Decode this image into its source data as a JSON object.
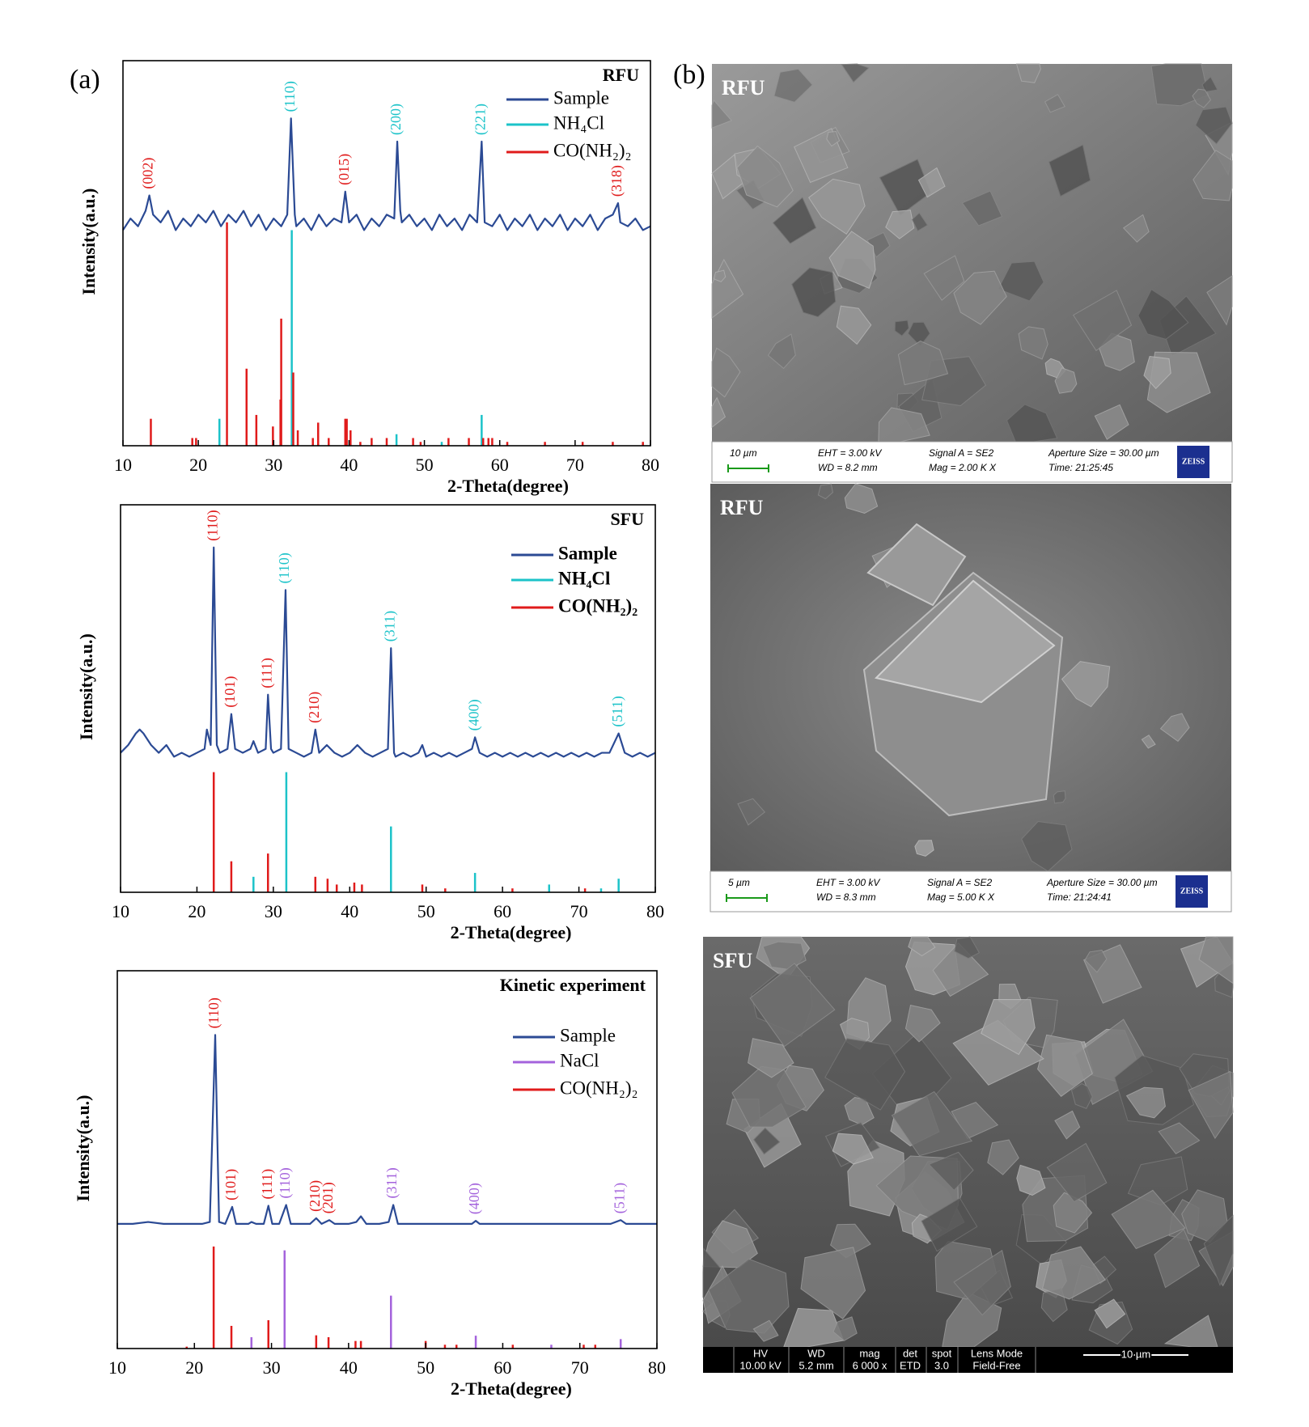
{
  "panel_labels": [
    "(a)",
    "(b)"
  ],
  "chart_data": [
    {
      "type": "line",
      "title": "RFU",
      "x_label": "2-Theta(degree)",
      "y_label": "Intensity(a.u.)",
      "xlim": [
        10,
        80
      ],
      "xticks": [
        10,
        20,
        30,
        40,
        50,
        60,
        70,
        80
      ],
      "ylim": [
        0,
        100
      ],
      "legend": "upper right",
      "legend_weight": "normal",
      "series": [
        {
          "name": "Sample",
          "color": "#2b4a94",
          "style": "line",
          "x": [
            10,
            11,
            12,
            13,
            13.5,
            14,
            15,
            16,
            17,
            18,
            19,
            20,
            21,
            22,
            23,
            24,
            25,
            26,
            27,
            28,
            29,
            30,
            31,
            31.8,
            32.3,
            32.8,
            33,
            34,
            35,
            36,
            37,
            38,
            39,
            39.5,
            40,
            41,
            42,
            43,
            44,
            45,
            46,
            46.4,
            46.8,
            47,
            48,
            49,
            50,
            51,
            52,
            53,
            54,
            55,
            56,
            57,
            57.6,
            58,
            59,
            60,
            61,
            62,
            63,
            64,
            65,
            66,
            67,
            68,
            69,
            70,
            71,
            72,
            73,
            74,
            75,
            75.7,
            76,
            77,
            78,
            79,
            80
          ],
          "values": [
            56,
            59,
            57,
            61,
            65,
            60,
            58,
            61,
            56,
            59,
            57,
            60,
            58,
            61,
            57,
            60,
            58,
            61,
            57,
            60,
            56,
            59,
            57,
            60,
            85,
            60,
            57,
            59,
            56,
            60,
            57,
            59,
            58,
            66,
            58,
            60,
            56,
            59,
            57,
            60,
            59,
            79,
            61,
            58,
            60,
            57,
            59,
            56,
            60,
            57,
            59,
            56,
            60,
            58,
            79,
            58,
            57,
            60,
            56,
            59,
            57,
            60,
            56,
            59,
            57,
            60,
            56,
            59,
            57,
            60,
            56,
            59,
            60,
            63,
            58,
            57,
            59,
            56,
            57
          ]
        },
        {
          "name": "NH₄Cl",
          "color": "#1cc3c9",
          "style": "stick",
          "x": [
            22.8,
            32.4,
            46.3,
            52.3,
            57.6
          ],
          "values": [
            7,
            56,
            3,
            1,
            8
          ]
        },
        {
          "name": "CO(NH₂)₂",
          "color": "#e01b1b",
          "style": "stick",
          "x": [
            13.7,
            19.2,
            19.7,
            23.8,
            26.4,
            27.7,
            29.9,
            30.9,
            31.0,
            32.6,
            33.2,
            35.2,
            35.9,
            37.3,
            39.5,
            39.7,
            40.2,
            41.5,
            43.0,
            45.0,
            48.5,
            49.5,
            53.2,
            55.9,
            57.8,
            58.5,
            59.0,
            61.0,
            66.0,
            71.0,
            75.0,
            79.0
          ],
          "values": [
            7,
            2,
            2,
            58,
            20,
            8,
            5,
            12,
            33,
            19,
            4,
            2,
            6,
            2,
            7,
            7,
            4,
            1,
            2,
            2,
            2,
            1,
            2,
            2,
            2,
            2,
            2,
            1,
            1,
            1,
            1,
            1
          ]
        }
      ],
      "annotations": [
        {
          "text": "(002)",
          "x": 13.5,
          "color": "#e01b1b"
        },
        {
          "text": "(110)",
          "x": 32.3,
          "color": "#1cc3c9"
        },
        {
          "text": "(015)",
          "x": 39.5,
          "color": "#e01b1b"
        },
        {
          "text": "(200)",
          "x": 46.4,
          "color": "#1cc3c9"
        },
        {
          "text": "(221)",
          "x": 57.6,
          "color": "#1cc3c9"
        },
        {
          "text": "(318)",
          "x": 75.7,
          "color": "#e01b1b"
        }
      ]
    },
    {
      "type": "line",
      "title": "SFU",
      "x_label": "2-Theta(degree)",
      "y_label": "Intensity(a.u.)",
      "xlim": [
        10,
        80
      ],
      "xticks": [
        10,
        20,
        30,
        40,
        50,
        60,
        70,
        80
      ],
      "ylim": [
        0,
        100
      ],
      "legend": "upper right",
      "legend_weight": "bold",
      "series": [
        {
          "name": "Sample",
          "color": "#2b4a94",
          "style": "line",
          "x": [
            10,
            11,
            12,
            12.5,
            13,
            14,
            15,
            16,
            17,
            18,
            19,
            20,
            21,
            21.3,
            21.8,
            22.2,
            22.6,
            23,
            24,
            24.5,
            25,
            26,
            27,
            27.4,
            28,
            29,
            29.3,
            29.7,
            30,
            31,
            31.6,
            32,
            33,
            34,
            35,
            35.5,
            36,
            37,
            38,
            39,
            40,
            41,
            42,
            43,
            44,
            45,
            45.4,
            45.8,
            46,
            47,
            48,
            49,
            49.5,
            50,
            51,
            52,
            53,
            54,
            55,
            56,
            56.4,
            57,
            58,
            59,
            60,
            61,
            62,
            63,
            64,
            65,
            66,
            67,
            68,
            69,
            70,
            71,
            72,
            73,
            74,
            75.2,
            76,
            77,
            78,
            79,
            80
          ],
          "values": [
            36,
            38,
            41,
            42,
            41,
            38,
            36,
            38,
            35,
            36,
            35,
            36,
            37,
            42,
            38,
            89,
            38,
            36,
            37,
            46,
            37,
            36,
            37,
            39,
            36,
            37,
            51,
            37,
            36,
            37,
            78,
            37,
            36,
            35,
            36,
            42,
            36,
            38,
            36,
            35,
            36,
            38,
            36,
            35,
            36,
            37,
            63,
            36,
            35,
            36,
            35,
            36,
            38,
            35,
            36,
            35,
            36,
            35,
            36,
            37,
            40,
            36,
            35,
            36,
            35,
            36,
            35,
            36,
            35,
            36,
            35,
            36,
            35,
            36,
            35,
            36,
            35,
            36,
            36,
            41,
            36,
            35,
            36,
            35,
            36
          ]
        },
        {
          "name": "NH₄Cl",
          "color": "#1cc3c9",
          "style": "stick",
          "x": [
            27.4,
            31.7,
            45.4,
            56.4,
            66.1,
            72.9,
            75.2
          ],
          "values": [
            4,
            31,
            17,
            5,
            2,
            1,
            3.5
          ]
        },
        {
          "name": "CO(NH₂)₂",
          "color": "#e01b1b",
          "style": "stick",
          "x": [
            22.2,
            24.5,
            29.3,
            35.5,
            37.1,
            38.3,
            40.6,
            41.6,
            49.5,
            52.5,
            61.3,
            70.8
          ],
          "values": [
            31,
            8,
            10,
            4,
            3.5,
            2,
            2.5,
            2,
            2,
            1,
            1,
            1
          ]
        }
      ],
      "annotations": [
        {
          "text": "(110)",
          "x": 22.2,
          "color": "#e01b1b"
        },
        {
          "text": "(101)",
          "x": 24.5,
          "color": "#e01b1b"
        },
        {
          "text": "(111)",
          "x": 29.3,
          "color": "#e01b1b"
        },
        {
          "text": "(110)",
          "x": 31.6,
          "color": "#1cc3c9"
        },
        {
          "text": "(210)",
          "x": 35.5,
          "color": "#e01b1b"
        },
        {
          "text": "(311)",
          "x": 45.4,
          "color": "#1cc3c9"
        },
        {
          "text": "(400)",
          "x": 56.4,
          "color": "#1cc3c9"
        },
        {
          "text": "(511)",
          "x": 75.2,
          "color": "#1cc3c9"
        }
      ]
    },
    {
      "type": "line",
      "title": "Kinetic experiment",
      "x_label": "2-Theta(degree)",
      "y_label": "Intensity(a.u.)",
      "xlim": [
        10,
        80
      ],
      "xticks": [
        10,
        20,
        30,
        40,
        50,
        60,
        70,
        80
      ],
      "ylim": [
        0,
        100
      ],
      "legend": "upper right",
      "legend_weight": "normal",
      "series": [
        {
          "name": "Sample",
          "color": "#2b4a94",
          "style": "line",
          "x": [
            10,
            12,
            14,
            16,
            18,
            20,
            21,
            22,
            22.7,
            23.2,
            24,
            24.9,
            25.4,
            26,
            27,
            27.4,
            28,
            29,
            29.6,
            30.1,
            31,
            31.9,
            32.5,
            34,
            35,
            35.8,
            36.5,
            37.5,
            38.2,
            40,
            41,
            41.6,
            42.3,
            44,
            45.2,
            45.8,
            46.4,
            48,
            50,
            52,
            54,
            56,
            56.5,
            57,
            60,
            65,
            70,
            74,
            75.3,
            76,
            80
          ],
          "values": [
            33,
            33,
            33.5,
            33,
            33,
            33,
            33,
            33.5,
            83,
            33.5,
            33,
            37.5,
            33,
            33,
            33,
            33.5,
            33,
            33,
            37.8,
            33,
            33,
            38,
            33,
            33,
            33,
            34.5,
            33,
            34,
            33,
            33,
            33.5,
            35,
            33,
            33,
            33.5,
            38,
            33,
            33,
            33,
            33,
            33,
            33,
            33.8,
            33,
            33,
            33,
            33,
            33,
            34,
            33,
            33
          ]
        },
        {
          "name": "NaCl",
          "color": "#a463dc",
          "style": "stick",
          "x": [
            27.4,
            31.7,
            45.5,
            56.5,
            66.3,
            75.3
          ],
          "values": [
            3,
            26,
            14,
            3.4,
            1,
            2.5
          ]
        },
        {
          "name": "CO(NH₂)₂",
          "color": "#e01b1b",
          "style": "stick",
          "x": [
            19.0,
            22.5,
            24.8,
            29.6,
            35.8,
            37.4,
            40.9,
            41.6,
            50.0,
            52.5,
            54.0,
            61.3,
            70.5,
            72.0
          ],
          "values": [
            0.5,
            27,
            6,
            7.5,
            3.5,
            3,
            2,
            2,
            2,
            1,
            1,
            1,
            1,
            1
          ]
        }
      ],
      "annotations": [
        {
          "text": "(110)",
          "x": 22.7,
          "color": "#e01b1b"
        },
        {
          "text": "(101)",
          "x": 24.9,
          "color": "#e01b1b"
        },
        {
          "text": "(111)",
          "x": 29.6,
          "color": "#e01b1b"
        },
        {
          "text": "(110)",
          "x": 31.9,
          "color": "#a463dc"
        },
        {
          "text": "(210)",
          "x": 35.8,
          "color": "#e01b1b"
        },
        {
          "text": "(201)",
          "x": 37.5,
          "color": "#e01b1b"
        },
        {
          "text": "(311)",
          "x": 45.8,
          "color": "#a463dc"
        },
        {
          "text": "(400)",
          "x": 56.5,
          "color": "#a463dc"
        },
        {
          "text": "(511)",
          "x": 75.3,
          "color": "#a463dc"
        }
      ]
    }
  ],
  "images": [
    {
      "label": "RFU",
      "info": [
        "10 µm",
        "EHT =  3.00 kV",
        "WD =  8.2 mm",
        "Signal A = SE2",
        "Mag =    2.00 K X",
        "Aperture Size = 30.00 µm",
        "Time: 21:25:45"
      ],
      "logo": "ZEISS"
    },
    {
      "label": "RFU",
      "info": [
        "5 µm",
        "EHT =  3.00 kV",
        "WD =  8.3 mm",
        "Signal A = SE2",
        "Mag =    5.00 K X",
        "Aperture Size = 30.00 µm",
        "Time: 21:24:41"
      ],
      "logo": "ZEISS"
    },
    {
      "label": "SFU",
      "bar": [
        {
          "head": "HV",
          "value": "10.00 kV"
        },
        {
          "head": "WD",
          "value": "5.2 mm"
        },
        {
          "head": "mag",
          "value": "6 000 x"
        },
        {
          "head": "det",
          "value": "ETD"
        },
        {
          "head": "spot",
          "value": "3.0"
        },
        {
          "head": "Lens Mode",
          "value": "Field-Free"
        }
      ],
      "scale": "10 µm"
    }
  ]
}
